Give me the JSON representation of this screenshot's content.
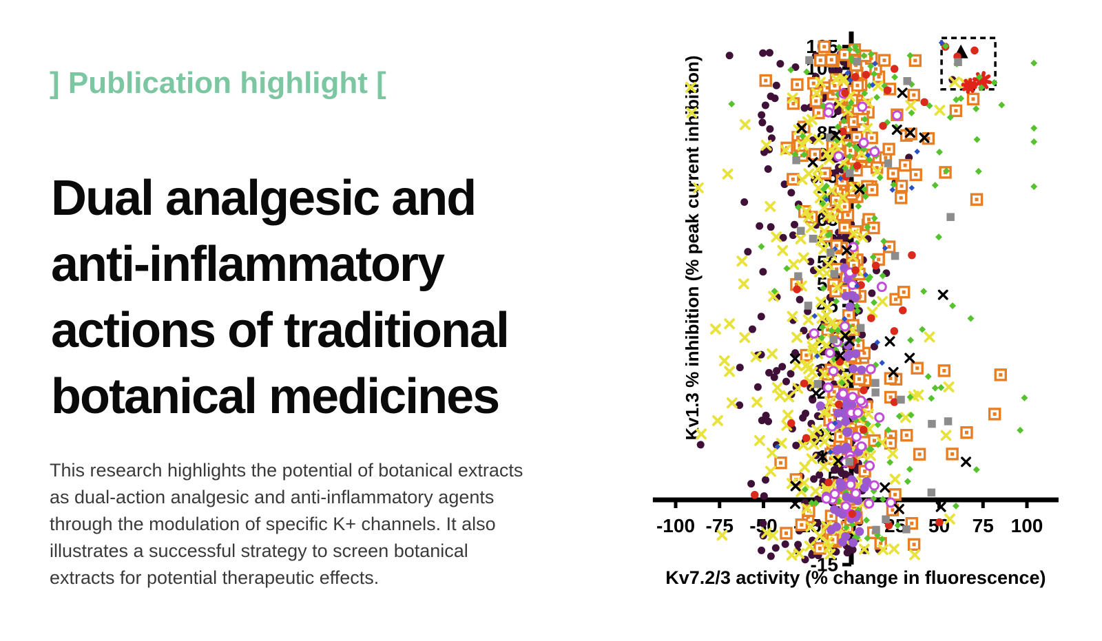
{
  "left": {
    "eyebrow": "] Publication highlight [",
    "eyebrow_color": "#7cc7a1",
    "title_lines": [
      "Dual analgesic and",
      "anti-inflammatory",
      "actions of traditional",
      "botanical medicines"
    ],
    "body_lines": [
      "This research highlights the potential of botanical extracts",
      "as dual-action analgesic and anti-inflammatory agents",
      "through the modulation of specific K+ channels. It also",
      "illustrates a successful strategy to screen botanical",
      "extracts for potential therapeutic effects."
    ]
  },
  "chart_data": {
    "type": "scatter",
    "title": "",
    "xlabel": "Kv7.2/3 activity (% change in fluorescence)",
    "ylabel": "Kv1.3 % inhibition (% peak current inhibition)",
    "xlim": [
      -113,
      118
    ],
    "ylim": [
      -15,
      108.5
    ],
    "x_ticks": [
      -100,
      -75,
      -50,
      -25,
      0,
      25,
      50,
      75,
      100
    ],
    "y_ticks": [
      -15,
      -10,
      -5,
      0,
      5,
      10,
      15,
      20,
      25,
      30,
      35,
      40,
      45,
      50,
      55,
      60,
      65,
      70,
      75,
      80,
      85,
      90,
      95,
      100,
      105
    ],
    "grid": false,
    "axis_color": "#000000",
    "seed": 1307,
    "highlight_box": {
      "x1": 51.4,
      "y1": 95.1,
      "x2": 82.0,
      "y2": 107.0,
      "style": "dashed"
    },
    "marker_styles": {
      "purple-dot": {
        "shape": "circle",
        "color": "#3f1038",
        "size": 11
      },
      "orange-square": {
        "shape": "square-dot",
        "color": "#e87e23",
        "size": 15
      },
      "yellow-x": {
        "shape": "x",
        "color": "#e8e23a",
        "size": 12,
        "stroke": 3.8
      },
      "green-diamond": {
        "shape": "diamond",
        "color": "#56c22d",
        "size": 10
      },
      "violet-circle": {
        "shape": "circle",
        "color": "#9b59d0",
        "size": 13
      },
      "violet-ring": {
        "shape": "ring",
        "color": "#c24cd8",
        "size": 12
      },
      "red-dot": {
        "shape": "circle",
        "color": "#d92a1c",
        "size": 11.5
      },
      "blue-diamond": {
        "shape": "diamond",
        "color": "#2a52c8",
        "size": 8.5
      },
      "gray-square": {
        "shape": "square",
        "color": "#8c8c8c",
        "size": 11.5
      },
      "black-x": {
        "shape": "x",
        "color": "#000000",
        "size": 11.5,
        "stroke": 3.4
      },
      "black-triangle": {
        "shape": "triangle",
        "color": "#000000",
        "size": 21
      },
      "red-star": {
        "shape": "star",
        "color": "#e02318",
        "size": 20
      }
    },
    "series": [
      {
        "name": "series-purple",
        "style": "purple-dot",
        "count": 340,
        "x_mix": [
          {
            "mean": -4,
            "sd": 6,
            "w": 0.55
          },
          {
            "mean": -25,
            "sd": 22,
            "w": 0.45
          }
        ],
        "x_clamp": [
          -95,
          45
        ],
        "y_segments": [
          {
            "min": -14,
            "max": 32,
            "w": 0.5
          },
          {
            "min": 32,
            "max": 75,
            "w": 0.28
          },
          {
            "min": 75,
            "max": 104,
            "w": 0.22
          }
        ]
      },
      {
        "name": "series-orange",
        "style": "orange-square",
        "count": 215,
        "x_mix": [
          {
            "mean": -3,
            "sd": 8,
            "w": 0.5
          },
          {
            "mean": 12,
            "sd": 30,
            "w": 0.5
          }
        ],
        "x_clamp": [
          -72,
          85
        ],
        "y_segments": [
          {
            "min": -13,
            "max": 30,
            "w": 0.32
          },
          {
            "min": 30,
            "max": 70,
            "w": 0.3
          },
          {
            "min": 70,
            "max": 105,
            "w": 0.38
          }
        ]
      },
      {
        "name": "series-yellow",
        "style": "yellow-x",
        "count": 200,
        "x_mix": [
          {
            "mean": -16,
            "sd": 12,
            "w": 0.55
          },
          {
            "mean": -12,
            "sd": 38,
            "w": 0.45
          }
        ],
        "x_clamp": [
          -108,
          78
        ],
        "y_segments": [
          {
            "min": -13,
            "max": 30,
            "w": 0.45
          },
          {
            "min": 30,
            "max": 70,
            "w": 0.3
          },
          {
            "min": 70,
            "max": 98,
            "w": 0.25
          }
        ]
      },
      {
        "name": "series-green",
        "style": "green-diamond",
        "count": 160,
        "x_mix": [
          {
            "mean": 2,
            "sd": 10,
            "w": 0.45
          },
          {
            "mean": 18,
            "sd": 40,
            "w": 0.55
          }
        ],
        "x_clamp": [
          -78,
          104
        ],
        "y_segments": [
          {
            "min": -10,
            "max": 30,
            "w": 0.35
          },
          {
            "min": 30,
            "max": 70,
            "w": 0.3
          },
          {
            "min": 70,
            "max": 105,
            "w": 0.35
          }
        ]
      },
      {
        "name": "series-violet-filled",
        "style": "violet-circle",
        "count": 60,
        "x_mix": [
          {
            "mean": -2,
            "sd": 6,
            "w": 1
          }
        ],
        "x_clamp": [
          -22,
          18
        ],
        "y_segments": [
          {
            "min": -12,
            "max": 25,
            "w": 0.75
          },
          {
            "min": 25,
            "max": 55,
            "w": 0.25
          }
        ]
      },
      {
        "name": "series-violet-ring",
        "style": "violet-ring",
        "count": 44,
        "x_mix": [
          {
            "mean": 2,
            "sd": 10,
            "w": 1
          }
        ],
        "x_clamp": [
          -25,
          32
        ],
        "y_segments": [
          {
            "min": -8,
            "max": 40,
            "w": 0.65
          },
          {
            "min": 40,
            "max": 95,
            "w": 0.35
          }
        ]
      },
      {
        "name": "series-red",
        "style": "red-dot",
        "count": 34,
        "x_mix": [
          {
            "mean": 2,
            "sd": 25,
            "w": 1
          }
        ],
        "x_clamp": [
          -55,
          72
        ],
        "y_segments": [
          {
            "min": -8,
            "max": 30,
            "w": 0.3
          },
          {
            "min": 30,
            "max": 70,
            "w": 0.25
          },
          {
            "min": 70,
            "max": 105,
            "w": 0.45
          }
        ]
      },
      {
        "name": "series-blue",
        "style": "blue-diamond",
        "count": 22,
        "x_mix": [
          {
            "mean": 2,
            "sd": 16,
            "w": 1
          }
        ],
        "x_clamp": [
          -42,
          56
        ],
        "y_segments": [
          {
            "min": 0,
            "max": 104,
            "w": 1
          }
        ]
      },
      {
        "name": "series-gray",
        "style": "gray-square",
        "count": 28,
        "x_mix": [
          {
            "mean": 8,
            "sd": 22,
            "w": 1
          }
        ],
        "x_clamp": [
          -36,
          76
        ],
        "y_segments": [
          {
            "min": -8,
            "max": 102,
            "w": 1
          }
        ]
      },
      {
        "name": "series-black-x",
        "style": "black-x",
        "count": 26,
        "x_mix": [
          {
            "mean": 12,
            "sd": 28,
            "w": 1
          }
        ],
        "x_clamp": [
          -32,
          86
        ],
        "y_segments": [
          {
            "min": -5,
            "max": 102,
            "w": 1
          }
        ]
      }
    ],
    "featured_points": [
      {
        "style": "black-triangle",
        "x": 62.4,
        "y": 103.8
      },
      {
        "style": "red-dot",
        "x": 70.2,
        "y": 104.1
      },
      {
        "style": "red-dot",
        "x": 60.4,
        "y": 102.7
      },
      {
        "style": "gray-square",
        "x": 60.8,
        "y": 101.4
      },
      {
        "style": "purple-dot",
        "x": 57.6,
        "y": 97.3
      },
      {
        "style": "yellow-x",
        "x": 58.8,
        "y": 96.8
      },
      {
        "style": "yellow-x",
        "x": 64.7,
        "y": 96.5
      },
      {
        "style": "red-star",
        "x": 67.1,
        "y": 95.9,
        "scale": 0.9
      },
      {
        "style": "red-star",
        "x": 74.5,
        "y": 97.1,
        "scale": 1.15
      },
      {
        "style": "green-diamond",
        "x": 72.9,
        "y": 97.9
      },
      {
        "style": "green-diamond",
        "x": 74.1,
        "y": 95.5
      },
      {
        "style": "blue-diamond",
        "x": 51.4,
        "y": 105.9
      },
      {
        "style": "green-diamond",
        "x": 53.7,
        "y": 105.1
      }
    ]
  }
}
